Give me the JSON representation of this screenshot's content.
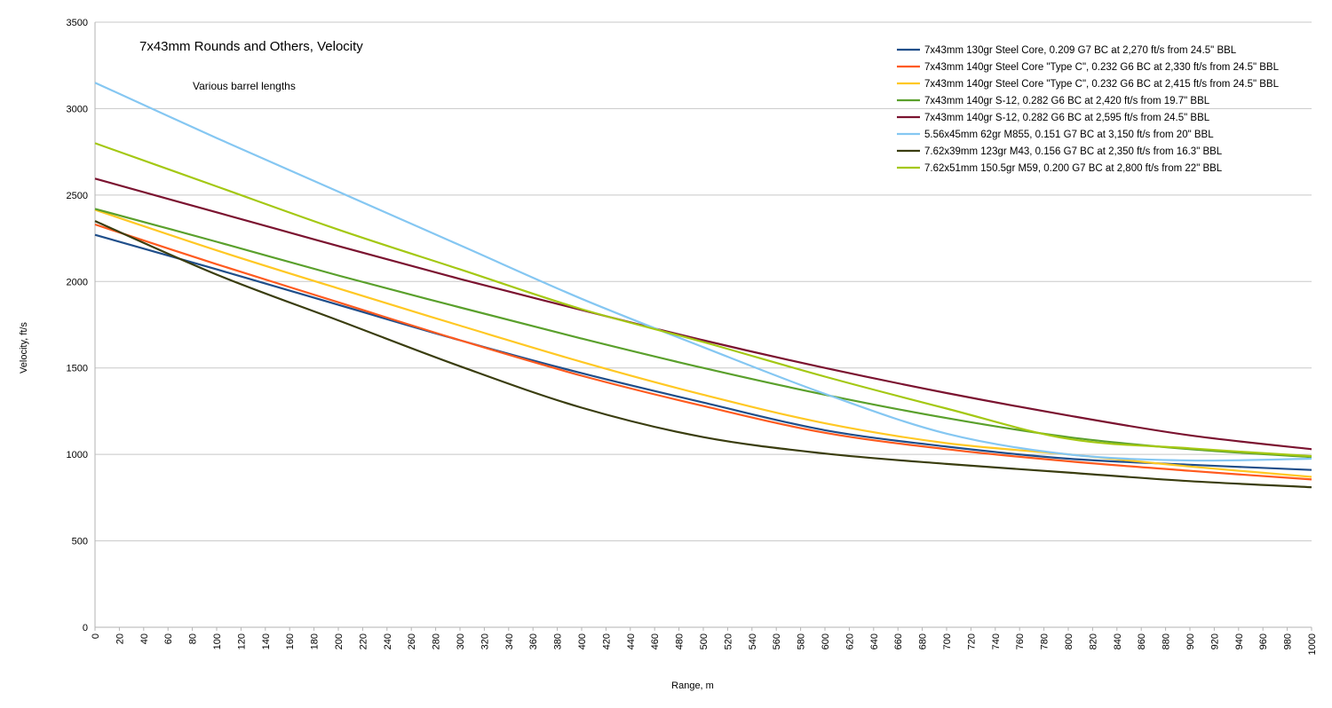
{
  "chart_data": {
    "type": "line",
    "title": "7x43mm Rounds and Others, Velocity",
    "subtitle": "Various barrel lengths",
    "xlabel": "Range, m",
    "ylabel": "Velocity, ft/s",
    "xlim": [
      0,
      1000
    ],
    "ylim": [
      0,
      3500
    ],
    "x_ticks": [
      0,
      20,
      40,
      60,
      80,
      100,
      120,
      140,
      160,
      180,
      200,
      220,
      240,
      260,
      280,
      300,
      320,
      340,
      360,
      380,
      400,
      420,
      440,
      460,
      480,
      500,
      520,
      540,
      560,
      580,
      600,
      620,
      640,
      660,
      680,
      700,
      720,
      740,
      760,
      780,
      800,
      820,
      840,
      860,
      880,
      900,
      920,
      940,
      960,
      980,
      1000
    ],
    "y_ticks": [
      0,
      500,
      1000,
      1500,
      2000,
      2500,
      3000,
      3500
    ],
    "grid": "horizontal",
    "legend_position": "top-right",
    "x": [
      0,
      100,
      200,
      300,
      400,
      500,
      600,
      700,
      800,
      900,
      1000
    ],
    "series": [
      {
        "name": "7x43mm 130gr Steel Core, 0.209 G7 BC at 2,270 ft/s from 24.5\" BBL",
        "color": "#1f4e8a",
        "values": [
          2270,
          2070,
          1865,
          1660,
          1470,
          1300,
          1140,
          1045,
          975,
          940,
          910
        ]
      },
      {
        "name": "7x43mm 140gr Steel Core \"Type C\", 0.232 G6 BC at 2,330 ft/s from 24.5\" BBL",
        "color": "#ff5a1f",
        "values": [
          2330,
          2100,
          1880,
          1660,
          1455,
          1280,
          1125,
          1030,
          960,
          905,
          855
        ]
      },
      {
        "name": "7x43mm 140gr Steel Core \"Type C\", 0.232 G6 BC at 2,415 ft/s from 24.5\" BBL",
        "color": "#ffc824",
        "values": [
          2415,
          2180,
          1960,
          1745,
          1535,
          1345,
          1180,
          1065,
          1000,
          930,
          870
        ]
      },
      {
        "name": "7x43mm 140gr S-12, 0.282 G6 BC at 2,420 ft/s from 19.7\" BBL",
        "color": "#5aa02c",
        "values": [
          2420,
          2230,
          2035,
          1850,
          1670,
          1500,
          1345,
          1210,
          1100,
          1030,
          985
        ]
      },
      {
        "name": "7x43mm 140gr S-12, 0.282 G6 BC at 2,595 ft/s from 24.5\" BBL",
        "color": "#7b1330",
        "values": [
          2595,
          2400,
          2205,
          2015,
          1835,
          1660,
          1500,
          1355,
          1225,
          1110,
          1030
        ]
      },
      {
        "name": "5.56x45mm 62gr M855, 0.151 G7 BC at 3,150 ft/s from 20\" BBL",
        "color": "#85c7f2",
        "values": [
          3150,
          2830,
          2520,
          2210,
          1900,
          1620,
          1350,
          1120,
          1000,
          965,
          975
        ]
      },
      {
        "name": "7.62x39mm 123gr M43, 0.156 G7 BC at 2,350 ft/s from 16.3\" BBL",
        "color": "#3a3d0f",
        "values": [
          2350,
          2040,
          1775,
          1510,
          1270,
          1100,
          1005,
          945,
          895,
          845,
          810
        ]
      },
      {
        "name": "7.62x51mm 150.5gr M59, 0.200 G7 BC at 2,800 ft/s from 22\" BBL",
        "color": "#a4c813",
        "values": [
          2800,
          2550,
          2300,
          2070,
          1840,
          1650,
          1450,
          1265,
          1090,
          1035,
          990
        ]
      }
    ]
  }
}
